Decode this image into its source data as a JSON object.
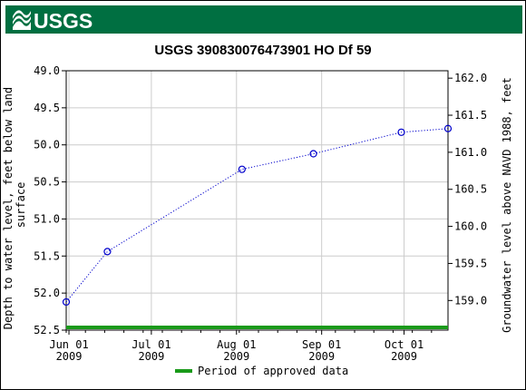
{
  "header": {
    "agency": "USGS",
    "brand_color": "#006f41"
  },
  "chart_data": {
    "type": "line",
    "title": "USGS 390830076473901 HO Df  59",
    "ylabel_left": "Depth to water level, feet below land surface",
    "ylabel_right": "Groundwater level above NAVD 1988, feet",
    "y_left_lim": [
      49.0,
      52.5
    ],
    "y_left_reversed": true,
    "y_left_ticks": [
      "49.0",
      "49.5",
      "50.0",
      "50.5",
      "51.0",
      "51.5",
      "52.0",
      "52.5"
    ],
    "y_right_lim": [
      158.6,
      162.1
    ],
    "y_right_ticks": [
      "162.0",
      "161.5",
      "161.0",
      "160.5",
      "160.0",
      "159.5",
      "159.0"
    ],
    "x_lim": [
      "2009-05-31",
      "2009-10-17"
    ],
    "x_ticks": [
      {
        "date": "2009-06-01",
        "label": "Jun 01",
        "year": "2009"
      },
      {
        "date": "2009-07-01",
        "label": "Jul 01",
        "year": "2009"
      },
      {
        "date": "2009-08-01",
        "label": "Aug 01",
        "year": "2009"
      },
      {
        "date": "2009-09-01",
        "label": "Sep 01",
        "year": "2009"
      },
      {
        "date": "2009-10-01",
        "label": "Oct 01",
        "year": "2009"
      }
    ],
    "series": [
      {
        "color": "#0000cc",
        "style": "dotted line with open circle markers",
        "x": [
          "2009-05-31",
          "2009-06-15",
          "2009-08-03",
          "2009-08-29",
          "2009-09-30",
          "2009-10-17"
        ],
        "y": [
          52.12,
          51.44,
          50.33,
          50.12,
          49.83,
          49.78
        ]
      }
    ],
    "approved_period": {
      "start": "2009-05-31",
      "end": "2009-10-17",
      "color": "#1a9a1a"
    },
    "legend": {
      "label": "Period of approved data",
      "position": "bottom-center"
    },
    "grid": true
  }
}
